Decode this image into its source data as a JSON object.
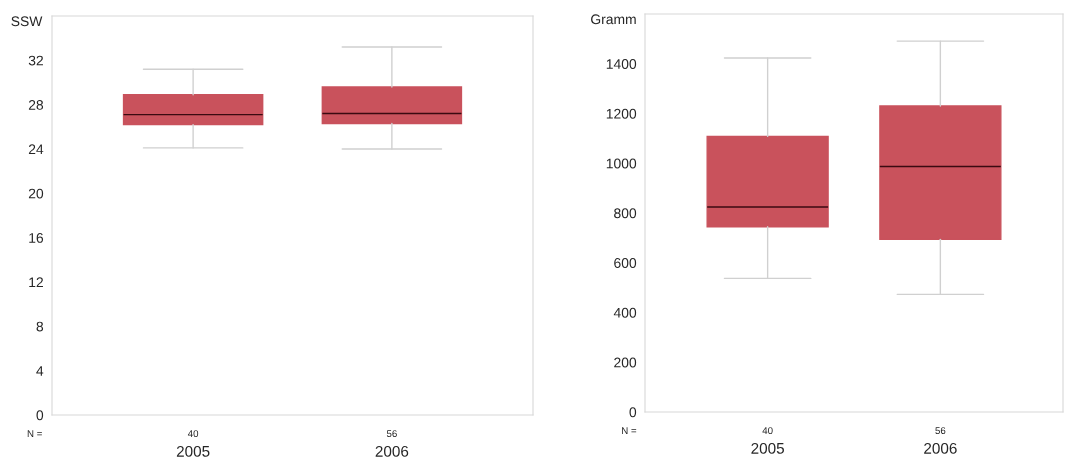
{
  "chart_data": [
    {
      "type": "box",
      "ylabel": "SSW",
      "categories": [
        "2005",
        "2006"
      ],
      "color": "#c9525c",
      "ylim": [
        0,
        36
      ],
      "yticks": [
        0,
        4,
        8,
        12,
        16,
        20,
        24,
        28,
        32
      ],
      "grid": false,
      "annotations": [
        "N =",
        "40",
        "56"
      ],
      "boxes": [
        {
          "low": 24.1,
          "q1": 26.2,
          "median": 27.1,
          "q3": 28.9,
          "high": 31.2
        },
        {
          "low": 24.0,
          "q1": 26.3,
          "median": 27.2,
          "q3": 29.6,
          "high": 33.2
        }
      ]
    },
    {
      "type": "box",
      "ylabel": "Gramm",
      "categories": [
        "2005",
        "2006"
      ],
      "color": "#c9525c",
      "ylim": [
        0,
        1600
      ],
      "yticks": [
        0,
        200,
        400,
        600,
        800,
        1000,
        1200,
        1400
      ],
      "grid": false,
      "annotations": [
        "N =",
        "40",
        "56"
      ],
      "boxes": [
        {
          "low": 537,
          "q1": 745,
          "median": 824,
          "q3": 1108,
          "high": 1423
        },
        {
          "low": 473,
          "q1": 694,
          "median": 987,
          "q3": 1230,
          "high": 1491
        }
      ]
    }
  ]
}
